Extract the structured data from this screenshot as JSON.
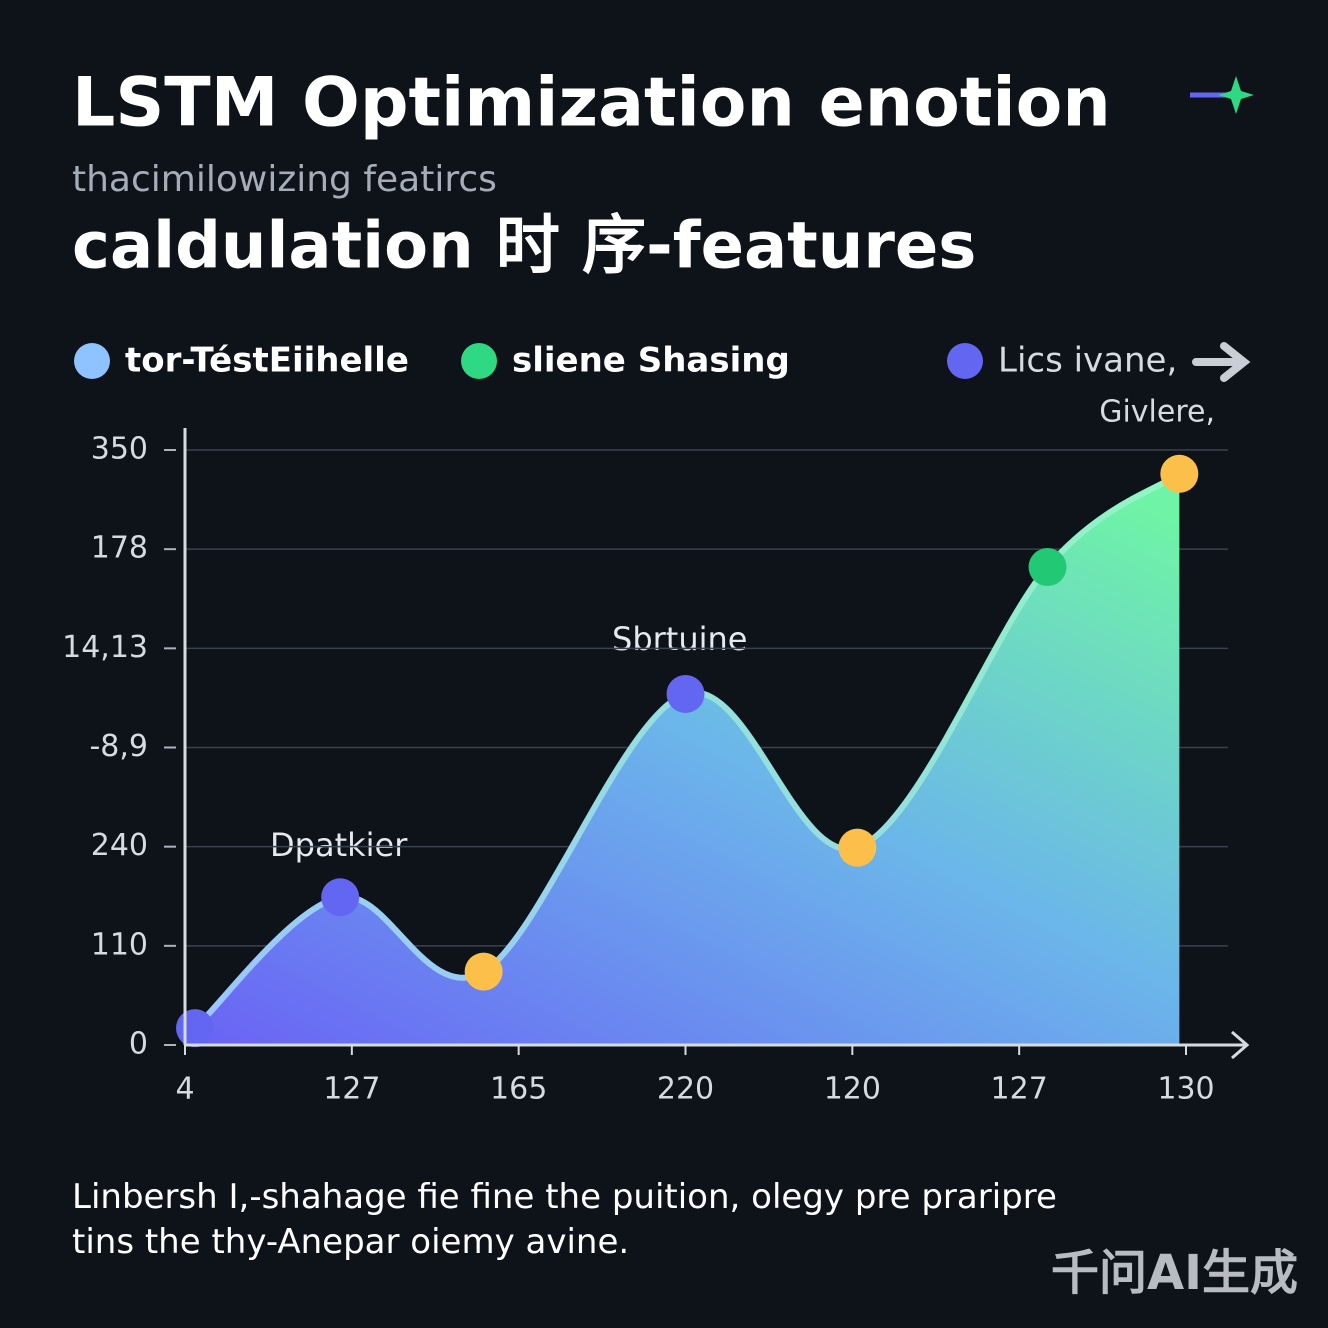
{
  "chart_data": {
    "type": "area",
    "title": "LSTM Optimization enotion",
    "subtitle": "thacimilowizing featircs",
    "heading": "caldulation 时 序-features",
    "legend": [
      {
        "name": "tor-TéstEiihelle",
        "color": "#8ec3ff"
      },
      {
        "name": "sliene Shasing",
        "color": "#2fd882"
      },
      {
        "name": "Lics ivane,",
        "color": "#6366f1"
      }
    ],
    "annotations": [
      "Dpatkier",
      "Sbrtuine",
      "Givlere,"
    ],
    "xlim": [
      0,
      6
    ],
    "xticks": [
      {
        "value": 0,
        "label": "4"
      },
      {
        "value": 1,
        "label": "127"
      },
      {
        "value": 2,
        "label": "165"
      },
      {
        "value": 3,
        "label": "220"
      },
      {
        "value": 4,
        "label": "120"
      },
      {
        "value": 5,
        "label": "127"
      },
      {
        "value": 6,
        "label": "130"
      }
    ],
    "ylim": [
      0,
      6
    ],
    "yticks": [
      {
        "value": 0,
        "label": "0"
      },
      {
        "value": 1,
        "label": "110"
      },
      {
        "value": 2,
        "label": "240"
      },
      {
        "value": 3,
        "label": "-8,9"
      },
      {
        "value": 4,
        "label": "14,13"
      },
      {
        "value": 5,
        "label": "178"
      },
      {
        "value": 6,
        "label": "350"
      }
    ],
    "grid": true,
    "series": [
      {
        "x": [
          0.06,
          0.93,
          1.79,
          3.0,
          4.03,
          5.17,
          5.96
        ],
        "values": [
          0.17,
          1.49,
          0.74,
          3.54,
          1.99,
          4.82,
          5.76
        ],
        "point_colors": [
          "#6366f1",
          "#6366f1",
          "#fbbf4a",
          "#6366f1",
          "#fbbf4a",
          "#22c873",
          "#fbbf4a"
        ]
      }
    ],
    "footer": "Linbersh I,-shahage fie fine the puition, olegy pre praripre tins the thy-Anepar oiemy avine.",
    "watermark": "千问AI生成"
  }
}
